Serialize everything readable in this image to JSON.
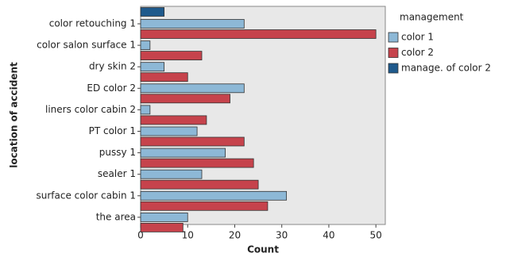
{
  "chart_data": {
    "type": "bar",
    "orientation": "horizontal",
    "x_label": "Count",
    "y_label": "location of accident",
    "categories": [
      "color retouching 1",
      "color salon surface 1",
      "dry skin 2",
      "ED  color 2",
      "liners color cabin 2",
      "PT color 1",
      "pussy 1",
      "sealer 1",
      "surface color cabin 1",
      "the area"
    ],
    "legend_title": "management",
    "series": [
      {
        "name": "color 1",
        "color": "#8db8d6",
        "values": [
          22,
          2,
          5,
          22,
          2,
          12,
          18,
          13,
          31,
          10
        ]
      },
      {
        "name": "color 2",
        "color": "#c6434c",
        "values": [
          50,
          13,
          10,
          19,
          14,
          22,
          24,
          25,
          27,
          9
        ]
      },
      {
        "name": "manage. of color 2",
        "color": "#1f5a8c",
        "values": [
          5,
          null,
          null,
          null,
          null,
          null,
          null,
          null,
          null,
          null
        ]
      }
    ],
    "xlim": [
      0,
      52
    ],
    "xticks": [
      0,
      10,
      20,
      30,
      40,
      50
    ],
    "legend_position": "right"
  }
}
